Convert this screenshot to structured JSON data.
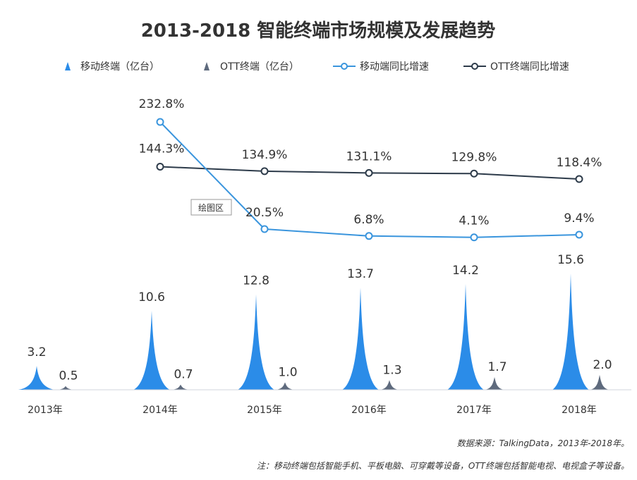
{
  "chart_data": {
    "type": "bar",
    "title": "2013-2018  智能终端市场规模及发展趋势",
    "categories": [
      "2013年",
      "2014年",
      "2015年",
      "2016年",
      "2017年",
      "2018年"
    ],
    "series": [
      {
        "name": "移动终端（亿台）",
        "kind": "bar",
        "color": "#2b8ce8",
        "values": [
          3.2,
          10.6,
          12.8,
          13.7,
          14.2,
          15.6
        ],
        "labels": [
          "3.2",
          "10.6",
          "12.8",
          "13.7",
          "14.2",
          "15.6"
        ]
      },
      {
        "name": "OTT终端（亿台）",
        "kind": "bar",
        "color": "#5e6a7d",
        "values": [
          0.5,
          0.7,
          1.0,
          1.3,
          1.7,
          2.0
        ],
        "labels": [
          "0.5",
          "0.7",
          "1.0",
          "1.3",
          "1.7",
          "2.0"
        ]
      },
      {
        "name": "移动端同比增速",
        "kind": "line",
        "color": "#3a95dd",
        "values": [
          null,
          232.8,
          20.5,
          6.8,
          4.1,
          9.4
        ],
        "labels": [
          "",
          "232.8%",
          "20.5%",
          "6.8%",
          "4.1%",
          "9.4%"
        ]
      },
      {
        "name": "OTT终端同比增速",
        "kind": "line",
        "color": "#2d3b4a",
        "values": [
          null,
          144.3,
          134.9,
          131.1,
          129.8,
          118.4
        ],
        "labels": [
          "",
          "144.3%",
          "134.9%",
          "131.1%",
          "129.8%",
          "118.4%"
        ]
      }
    ],
    "legend_position": "top",
    "grid": false,
    "tooltip": "绘图区",
    "source_note": "数据来源：TalkingData，2013年-2018年。",
    "footnote": "注：移动终端包括智能手机、平板电脑、可穿戴等设备，OTT终端包括智能电视、电视盒子等设备。"
  }
}
